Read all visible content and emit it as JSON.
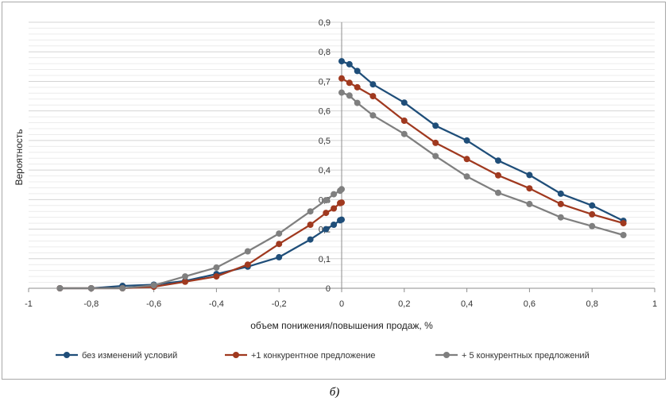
{
  "caption": "б)",
  "chart_data": {
    "type": "line",
    "title": "",
    "xlabel": "объем понижения/повышения продаж, %",
    "ylabel": "Вероятность",
    "xlim": [
      -1,
      1
    ],
    "ylim": [
      0,
      0.9
    ],
    "x_ticks": [
      "-1",
      "-0,8",
      "-0,6",
      "-0,4",
      "-0,2",
      "0",
      "0,2",
      "0,4",
      "0,6",
      "0,8",
      "1"
    ],
    "y_ticks": [
      "0",
      "0,1",
      "0,2",
      "0,3",
      "0,4",
      "0,5",
      "0,6",
      "0,7",
      "0,8",
      "0,9"
    ],
    "grid": true,
    "legend_position": "bottom",
    "series": [
      {
        "name": "без изменений условий",
        "color": "#1f4e79",
        "points": [
          [
            -0.9,
            0.0
          ],
          [
            -0.8,
            0.0
          ],
          [
            -0.7,
            0.008
          ],
          [
            -0.6,
            0.012
          ],
          [
            -0.5,
            0.025
          ],
          [
            -0.4,
            0.048
          ],
          [
            -0.3,
            0.073
          ],
          [
            -0.2,
            0.105
          ],
          [
            -0.1,
            0.165
          ],
          [
            -0.05,
            0.2
          ],
          [
            -0.025,
            0.215
          ],
          [
            -0.005,
            0.23
          ],
          [
            0,
            0.232
          ]
        ]
      },
      {
        "name": "без изменений условий",
        "color": "#1f4e79",
        "legend": false,
        "points": [
          [
            0,
            0.768
          ],
          [
            0.025,
            0.758
          ],
          [
            0.05,
            0.735
          ],
          [
            0.1,
            0.69
          ],
          [
            0.2,
            0.628
          ],
          [
            0.3,
            0.55
          ],
          [
            0.4,
            0.5
          ],
          [
            0.5,
            0.432
          ],
          [
            0.6,
            0.383
          ],
          [
            0.7,
            0.32
          ],
          [
            0.8,
            0.28
          ],
          [
            0.9,
            0.228
          ]
        ]
      },
      {
        "name": "+1 конкурентное предложение",
        "color": "#a0391f",
        "points": [
          [
            -0.9,
            0.0
          ],
          [
            -0.8,
            0.0
          ],
          [
            -0.7,
            0.0
          ],
          [
            -0.6,
            0.005
          ],
          [
            -0.5,
            0.022
          ],
          [
            -0.4,
            0.04
          ],
          [
            -0.3,
            0.08
          ],
          [
            -0.2,
            0.15
          ],
          [
            -0.1,
            0.215
          ],
          [
            -0.05,
            0.255
          ],
          [
            -0.025,
            0.27
          ],
          [
            -0.005,
            0.288
          ],
          [
            0,
            0.29
          ]
        ]
      },
      {
        "name": "+1 конкурентное предложение",
        "color": "#a0391f",
        "legend": false,
        "points": [
          [
            0,
            0.71
          ],
          [
            0.025,
            0.695
          ],
          [
            0.05,
            0.68
          ],
          [
            0.1,
            0.65
          ],
          [
            0.2,
            0.567
          ],
          [
            0.3,
            0.492
          ],
          [
            0.4,
            0.437
          ],
          [
            0.5,
            0.382
          ],
          [
            0.6,
            0.338
          ],
          [
            0.7,
            0.285
          ],
          [
            0.8,
            0.25
          ],
          [
            0.9,
            0.22
          ]
        ]
      },
      {
        "name": "+ 5 конкурентных предложений",
        "color": "#7f7f7f",
        "points": [
          [
            -0.9,
            0.0
          ],
          [
            -0.8,
            0.0
          ],
          [
            -0.7,
            0.0
          ],
          [
            -0.6,
            0.01
          ],
          [
            -0.5,
            0.04
          ],
          [
            -0.4,
            0.07
          ],
          [
            -0.3,
            0.125
          ],
          [
            -0.2,
            0.185
          ],
          [
            -0.1,
            0.26
          ],
          [
            -0.05,
            0.298
          ],
          [
            -0.025,
            0.318
          ],
          [
            -0.005,
            0.33
          ],
          [
            0,
            0.335
          ]
        ]
      },
      {
        "name": "+ 5 конкурентных предложений",
        "color": "#7f7f7f",
        "legend": false,
        "points": [
          [
            0,
            0.662
          ],
          [
            0.025,
            0.652
          ],
          [
            0.05,
            0.627
          ],
          [
            0.1,
            0.585
          ],
          [
            0.2,
            0.522
          ],
          [
            0.3,
            0.447
          ],
          [
            0.4,
            0.378
          ],
          [
            0.5,
            0.323
          ],
          [
            0.6,
            0.285
          ],
          [
            0.7,
            0.24
          ],
          [
            0.8,
            0.21
          ],
          [
            0.9,
            0.18
          ]
        ]
      }
    ]
  }
}
